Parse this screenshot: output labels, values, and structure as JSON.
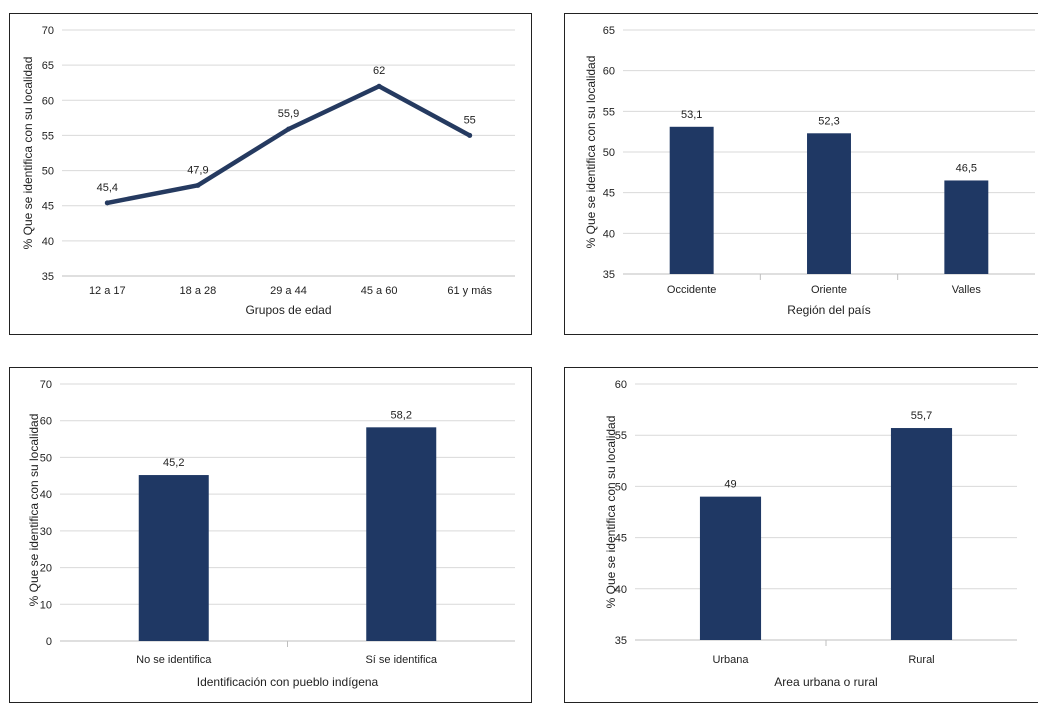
{
  "chart_data": [
    {
      "type": "line",
      "categories": [
        "12 a 17",
        "18 a 28",
        "29 a 44",
        "45 a 60",
        "61 y más"
      ],
      "values": [
        45.4,
        47.9,
        55.9,
        62,
        55
      ],
      "data_labels": [
        "45,4",
        "47,9",
        "55,9",
        "62",
        "55"
      ],
      "xlabel": "Grupos de edad",
      "ylabel": "% Que se identifica con su localidad",
      "ylim": [
        35,
        70
      ],
      "yticks": [
        35,
        40,
        45,
        50,
        55,
        60,
        65,
        70
      ],
      "grid": true,
      "color": "#253A60"
    },
    {
      "type": "bar",
      "categories": [
        "Occidente",
        "Oriente",
        "Valles"
      ],
      "values": [
        53.1,
        52.3,
        46.5
      ],
      "data_labels": [
        "53,1",
        "52,3",
        "46,5"
      ],
      "xlabel": "Región del país",
      "ylabel": "% Que se identifica con su localidad",
      "ylim": [
        35,
        65
      ],
      "yticks": [
        35,
        40,
        45,
        50,
        55,
        60,
        65
      ],
      "grid": true,
      "color": "#1F3864"
    },
    {
      "type": "bar",
      "categories": [
        "No se identifica",
        "Sí se identifica"
      ],
      "values": [
        45.2,
        58.2
      ],
      "data_labels": [
        "45,2",
        "58,2"
      ],
      "xlabel": "Identificación con pueblo indígena",
      "ylabel": "% Que se identifica con su localidad",
      "ylim": [
        0,
        70
      ],
      "yticks": [
        0,
        10,
        20,
        30,
        40,
        50,
        60,
        70
      ],
      "grid": true,
      "color": "#1F3864"
    },
    {
      "type": "bar",
      "categories": [
        "Urbana",
        "Rural"
      ],
      "values": [
        49,
        55.7
      ],
      "data_labels": [
        "49",
        "55,7"
      ],
      "xlabel": "Area urbana o rural",
      "ylabel": "% Que se identifica con su localidad",
      "ylim": [
        35,
        60
      ],
      "yticks": [
        35,
        40,
        45,
        50,
        55,
        60
      ],
      "grid": true,
      "color": "#1F3864"
    }
  ]
}
